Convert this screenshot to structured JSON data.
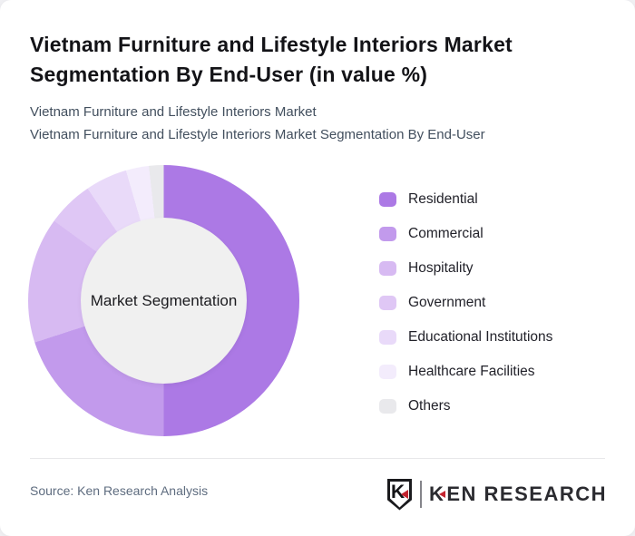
{
  "card": {
    "title_line1": "Vietnam Furniture and Lifestyle Interiors Market",
    "title_line2": "Segmentation By End-User (in value %)",
    "subtitle_line1": "Vietnam Furniture and Lifestyle Interiors Market",
    "subtitle_line2": "Vietnam Furniture and Lifestyle Interiors Market Segmentation By End-User"
  },
  "chart_data": {
    "type": "pie",
    "variant": "donut",
    "title": "Vietnam Furniture and Lifestyle Interiors Market Segmentation By End-User (in value %)",
    "unit": "value %",
    "center_label": "Market Segmentation",
    "categories": [
      "Residential",
      "Commercial",
      "Hospitality",
      "Government",
      "Educational Institutions",
      "Healthcare Facilities",
      "Others"
    ],
    "values_est_pct": [
      50,
      20,
      15,
      5.5,
      5,
      2.75,
      1.75
    ],
    "colors": [
      "#ac79e5",
      "#c29aec",
      "#d7baf2",
      "#dfc7f5",
      "#e9daf9",
      "#f3ecfc",
      "#e9e9ec"
    ],
    "inner_circle_color": "#f0f0f0",
    "start_angle_deg": 0,
    "direction": "clockwise",
    "legend_position": "right",
    "data_labels_shown": false
  },
  "footer": {
    "source": "Source: Ken Research Analysis",
    "logo": {
      "monogram": "K",
      "wordmark_k": "K",
      "wordmark_rest": "EN RESEARCH",
      "accent_color": "#c4232e"
    }
  }
}
